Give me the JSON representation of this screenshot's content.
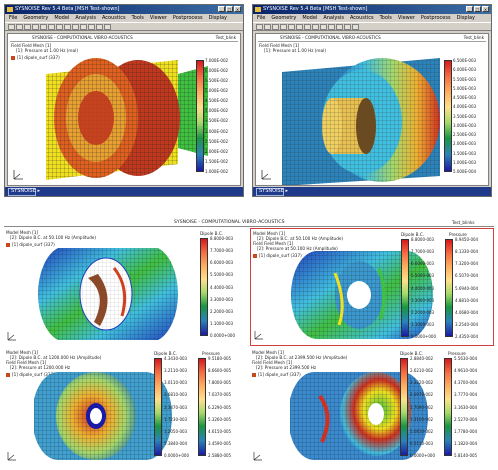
{
  "windows": [
    {
      "title": "SYSNOISE Rev 5.4 Beta  [MSH Test-shown]",
      "menu": [
        "File",
        "Geometry",
        "Model",
        "Analysis",
        "Acoustics",
        "Tools",
        "Viewer",
        "Postprocess",
        "Display"
      ],
      "breadcrumb": "SYSNOISE - COMPUTATIONAL VIBRO-ACOUSTICS",
      "corner_tag": "Test_blink",
      "model_label": "Field Field Mesh [1]",
      "result_label": "[1]: Pressure at 1.00 Hz (real)",
      "legend_item": "[1] dipole_surf (337)",
      "ticks": [
        "7.000E-002",
        "6.000E-002",
        "5.500E-002",
        "5.000E-002",
        "4.500E-002",
        "4.000E-002",
        "3.500E-002",
        "3.000E-002",
        "2.500E-002",
        "2.000E-002",
        "1.500E-002",
        "1.000E-002"
      ],
      "status": "SYSNOISE ▸"
    },
    {
      "title": "SYSNOISE Rev 5.4 Beta  [MSH Test-shown]",
      "menu": [
        "File",
        "Geometry",
        "Model",
        "Analysis",
        "Acoustics",
        "Tools",
        "Viewer",
        "Postprocess",
        "Display"
      ],
      "breadcrumb": "SYSNOISE - COMPUTATIONAL VIBRO-ACOUSTICS",
      "corner_tag": "Test_blink",
      "model_label": "Field Field Mesh [1]",
      "result_label": "[1]: Pressure at 1.00 Hz (real)",
      "ticks": [
        "6.500E-003",
        "6.000E-003",
        "5.500E-003",
        "5.000E-003",
        "4.500E-003",
        "4.000E-003",
        "3.500E-003",
        "3.000E-003",
        "2.500E-003",
        "2.000E-003",
        "1.500E-003",
        "1.000E-003",
        "5.000E-004"
      ],
      "status": "SYSNOISE ▸"
    }
  ],
  "report": {
    "header": "SYSNOISE - COMPUTATIONAL VIBRO-ACOUSTICS",
    "corner_tag": "Test_blinks",
    "panels": [
      {
        "model": "Model Mesh [1]",
        "result": "[2]: Dipole B.C. at 50.100 Hz (Amplitude)",
        "legend": "[1] dipole_surf (337)",
        "cbar_title": "Dipole B.C.",
        "ticks": [
          "8.8000-003",
          "7.7000-003",
          "6.6000-003",
          "5.5000-003",
          "4.4000-003",
          "3.3000-003",
          "2.2000-003",
          "1.1000-003",
          "0.0000+000"
        ]
      },
      {
        "model": "Model Mesh [1]",
        "result": "[2]: Dipole B.C. at 50.100 Hz (Amplitude)",
        "field_model": "Field Field Mesh [1]",
        "field_result": "[2]: Pressure at 50.100 Hz (Amplitude)",
        "legend": "[1] dipole_surf (337)",
        "cbar_title": "Dipole B.C.",
        "cbar2_title": "Pressure",
        "ticks": [
          "8.8000-003",
          "7.7000-003",
          "6.6000-003",
          "5.5000-003",
          "4.4000-003",
          "3.3000-003",
          "2.2000-003",
          "1.1000-003",
          "0.0000+000"
        ],
        "ticks2": [
          "8.9450-004",
          "8.1330-004",
          "7.3200-004",
          "6.5070-004",
          "5.6940-004",
          "4.8810-004",
          "4.0680-004",
          "3.2540-004",
          "2.4350-004"
        ]
      },
      {
        "model": "Model Mesh [1]",
        "result": "[2]: Dipole B.C. at 1200.000 Hz (Amplitude)",
        "field_model": "Field Field Mesh [1]",
        "field_result": "[2]: Pressure at 1200.000 Hz",
        "legend": "[1] dipole_surf (337)",
        "cbar_title": "Dipole B.C.",
        "cbar2_title": "Pressure",
        "ticks": [
          "4.3430-003",
          "3.2110-003",
          "3.0110-003",
          "2.6810-003",
          "2.3470-003",
          "1.7230-003",
          "1.2050-003",
          "5.3840-004",
          "0.0000+000"
        ],
        "ticks2": [
          "9.5180-005",
          "8.6600-005",
          "7.8000-005",
          "7.0370-005",
          "6.2290-005",
          "5.3260-005",
          "4.6150-005",
          "3.4590-005",
          "2.5880-005"
        ]
      },
      {
        "model": "Model Mesh [1]",
        "result": "[2]: Dipole B.C. at 2399.500 Hz (Amplitude)",
        "field_model": "Field Field Mesh [1]",
        "field_result": "[2]: Pressure at 2399.500 Hz",
        "legend": "[1] dipole_surf (337)",
        "cbar_title": "Dipole B.C.",
        "cbar2_title": "Pressure",
        "ticks": [
          "2.8840-002",
          "2.6210-002",
          "2.3220-002",
          "2.0970-002",
          "1.7090-002",
          "1.3100-002",
          "1.0810-002",
          "6.5110-003",
          "0.0000+000"
        ],
        "ticks2": [
          "5.5630-004",
          "4.9610-004",
          "4.3700-004",
          "3.7770-004",
          "3.1630-004",
          "2.5270-004",
          "1.7780-004",
          "1.1820-004",
          "5.8140-005"
        ]
      }
    ]
  },
  "colors": {
    "titlebar": "#0a246a",
    "statusbar": "#1f3a8a",
    "window_chrome": "#d4d0c8",
    "mesh_red": "#c0391e",
    "mesh_orange": "#e8a030",
    "mesh_yellow": "#f0e020",
    "mesh_green": "#40c040",
    "mesh_cyan": "#40c0e0",
    "mesh_blue": "#2040c0",
    "highlight_border": "#d04040"
  }
}
